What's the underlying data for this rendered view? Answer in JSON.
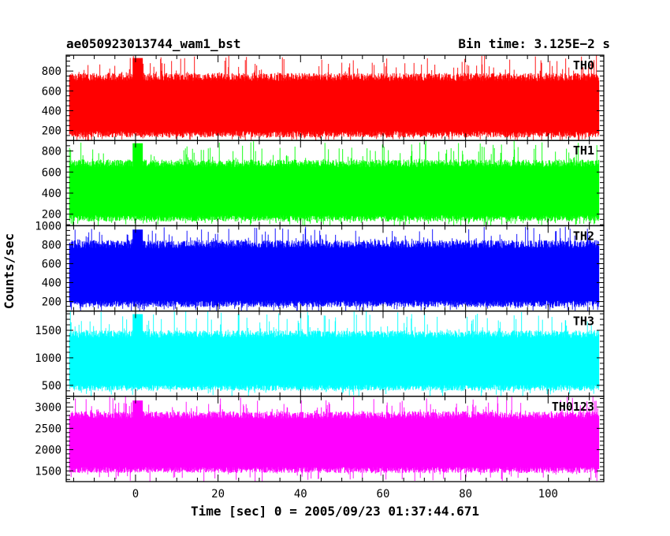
{
  "title_left": "ae050923013744_wam1_bst",
  "title_right": "Bin time: 3.125E−2 s",
  "ylabel": "Counts/sec",
  "xlabel": "Time [sec] 0 = 2005/09/23 01:37:44.671",
  "chart_data": {
    "type": "line",
    "x_range": [
      -16,
      112.3
    ],
    "xlim": [
      -16.8,
      113.5
    ],
    "x_ticks": [
      0,
      20,
      40,
      60,
      80,
      100
    ],
    "x_minor_step": 5,
    "bin_time_sec": 0.03125,
    "grid": false,
    "panels": [
      {
        "name": "TH0",
        "color": "#ff0000",
        "ylim": [
          100,
          960
        ],
        "y_ticks": [
          200,
          400,
          600,
          800
        ],
        "y_minor_step": 50,
        "typical_low": 130,
        "typical_high": 780,
        "peak_max": 960,
        "burst_time": 0.5
      },
      {
        "name": "TH1",
        "color": "#00ff00",
        "ylim": [
          90,
          900
        ],
        "y_ticks": [
          200,
          400,
          600,
          800
        ],
        "y_minor_step": 50,
        "typical_low": 130,
        "typical_high": 720,
        "peak_max": 900,
        "burst_time": 0.5
      },
      {
        "name": "TH2",
        "color": "#0000ff",
        "ylim": [
          100,
          1000
        ],
        "y_ticks": [
          200,
          400,
          600,
          800,
          1000
        ],
        "y_minor_step": 50,
        "typical_low": 140,
        "typical_high": 850,
        "peak_max": 990,
        "burst_time": 0.5
      },
      {
        "name": "TH3",
        "color": "#00ffff",
        "ylim": [
          300,
          1850
        ],
        "y_ticks": [
          500,
          1000,
          1500
        ],
        "y_minor_step": 100,
        "typical_low": 400,
        "typical_high": 1500,
        "peak_max": 1850,
        "burst_time": 0.5
      },
      {
        "name": "TH0123",
        "color": "#ff00ff",
        "ylim": [
          1250,
          3250
        ],
        "y_ticks": [
          1500,
          2000,
          2500,
          3000
        ],
        "y_minor_step": 100,
        "typical_low": 1450,
        "typical_high": 2900,
        "peak_max": 3250,
        "burst_time": 0.5
      }
    ]
  }
}
